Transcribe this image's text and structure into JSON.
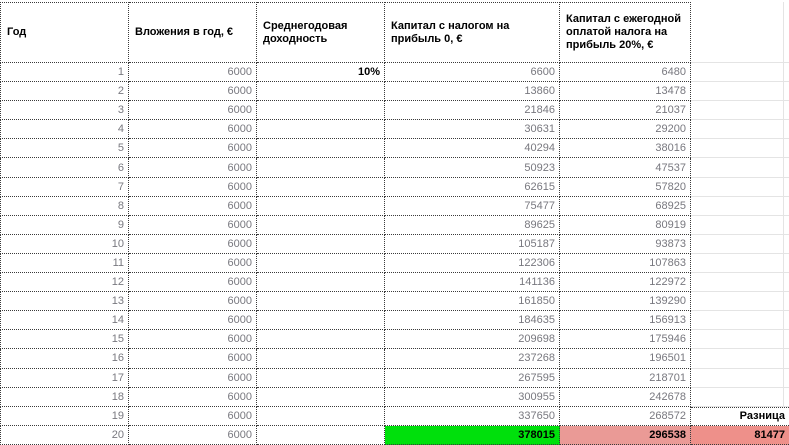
{
  "table": {
    "headers": [
      "Год",
      "Вложения в год, €",
      "Среднегодовая доходность",
      "Капитал с налогом на прибыль 0, €",
      "Капитал с ежегодной оплатой налога на прибыль 20%, €",
      ""
    ],
    "rows": [
      {
        "year": "1",
        "investment": "6000",
        "yield": "10%",
        "cap0": "6600",
        "cap20": "6480",
        "extra": ""
      },
      {
        "year": "2",
        "investment": "6000",
        "yield": "",
        "cap0": "13860",
        "cap20": "13478",
        "extra": ""
      },
      {
        "year": "3",
        "investment": "6000",
        "yield": "",
        "cap0": "21846",
        "cap20": "21037",
        "extra": ""
      },
      {
        "year": "4",
        "investment": "6000",
        "yield": "",
        "cap0": "30631",
        "cap20": "29200",
        "extra": ""
      },
      {
        "year": "5",
        "investment": "6000",
        "yield": "",
        "cap0": "40294",
        "cap20": "38016",
        "extra": ""
      },
      {
        "year": "6",
        "investment": "6000",
        "yield": "",
        "cap0": "50923",
        "cap20": "47537",
        "extra": ""
      },
      {
        "year": "7",
        "investment": "6000",
        "yield": "",
        "cap0": "62615",
        "cap20": "57820",
        "extra": ""
      },
      {
        "year": "8",
        "investment": "6000",
        "yield": "",
        "cap0": "75477",
        "cap20": "68925",
        "extra": ""
      },
      {
        "year": "9",
        "investment": "6000",
        "yield": "",
        "cap0": "89625",
        "cap20": "80919",
        "extra": ""
      },
      {
        "year": "10",
        "investment": "6000",
        "yield": "",
        "cap0": "105187",
        "cap20": "93873",
        "extra": ""
      },
      {
        "year": "11",
        "investment": "6000",
        "yield": "",
        "cap0": "122306",
        "cap20": "107863",
        "extra": ""
      },
      {
        "year": "12",
        "investment": "6000",
        "yield": "",
        "cap0": "141136",
        "cap20": "122972",
        "extra": ""
      },
      {
        "year": "13",
        "investment": "6000",
        "yield": "",
        "cap0": "161850",
        "cap20": "139290",
        "extra": ""
      },
      {
        "year": "14",
        "investment": "6000",
        "yield": "",
        "cap0": "184635",
        "cap20": "156913",
        "extra": ""
      },
      {
        "year": "15",
        "investment": "6000",
        "yield": "",
        "cap0": "209698",
        "cap20": "175946",
        "extra": ""
      },
      {
        "year": "16",
        "investment": "6000",
        "yield": "",
        "cap0": "237268",
        "cap20": "196501",
        "extra": ""
      },
      {
        "year": "17",
        "investment": "6000",
        "yield": "",
        "cap0": "267595",
        "cap20": "218701",
        "extra": ""
      },
      {
        "year": "18",
        "investment": "6000",
        "yield": "",
        "cap0": "300955",
        "cap20": "242678",
        "extra": ""
      },
      {
        "year": "19",
        "investment": "6000",
        "yield": "",
        "cap0": "337650",
        "cap20": "268572",
        "extra": "Разница"
      },
      {
        "year": "20",
        "investment": "6000",
        "yield": "",
        "cap0": "378015",
        "cap20": "296538",
        "extra": "81477"
      }
    ],
    "colors": {
      "tax0_highlight": "#00e00c",
      "tax20_highlight": "#ea9a96",
      "difference_highlight": "#ee908a",
      "number_text": "#78787f",
      "gridline": "#e4e4e4",
      "dotted_border": "#3a3a3a"
    }
  }
}
